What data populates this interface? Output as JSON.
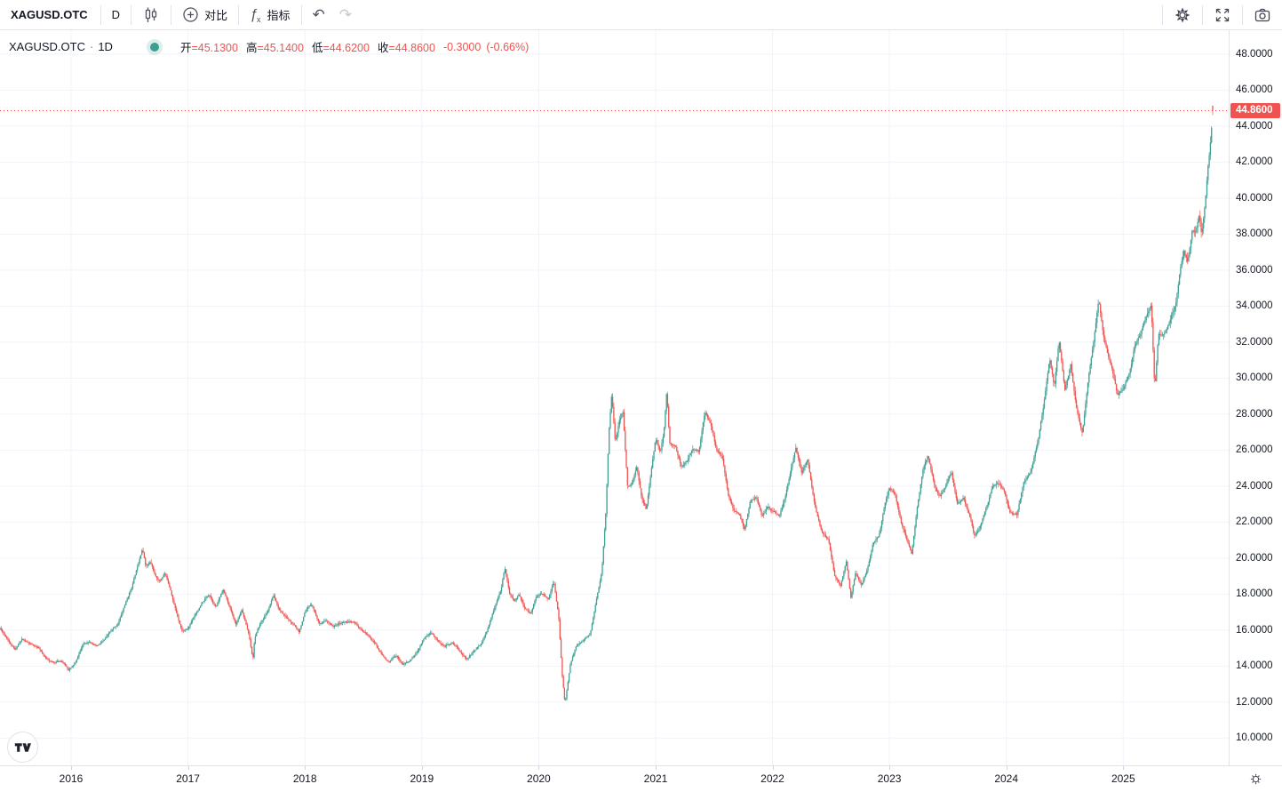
{
  "toolbar": {
    "symbol": "XAGUSD.OTC",
    "interval": "D",
    "compare": "对比",
    "indicators": "指标"
  },
  "icons": {
    "undo": "↶",
    "redo": "↷",
    "fx_f": "ƒ",
    "fx_x": "x"
  },
  "legend": {
    "title": "XAGUSD.OTC",
    "separator": "·",
    "interval": "1D",
    "open_label": "开",
    "open_value": "=45.1300",
    "high_label": "高",
    "high_value": "=45.1400",
    "low_label": "低",
    "low_value": "=44.6200",
    "close_label": "收",
    "close_value": "=44.8600",
    "change": "-0.3000",
    "change_pct": "(-0.66%)"
  },
  "price_axis": {
    "last_price": "44.8600"
  },
  "colors": {
    "up": "#3d9e92",
    "down": "#ef5350",
    "grid": "#f0f3fa",
    "border": "#e0e3eb",
    "text": "#131722",
    "muted": "#787b86",
    "icon": "#50535e",
    "disabled": "#c5c8d1",
    "halo": "rgba(61,158,146,0.18)"
  },
  "chart_data": {
    "type": "candlestick",
    "symbol": "XAGUSD.OTC",
    "timeframe": "1D",
    "last": {
      "open": 45.13,
      "high": 45.14,
      "low": 44.62,
      "close": 44.86,
      "change": -0.3,
      "change_pct": -0.66
    },
    "x_min": 2015.392,
    "x_max": 2025.902,
    "t_end": 2025.765,
    "y_min": 8.49,
    "y_max": 49.33,
    "price_ticks": [
      10,
      12,
      14,
      16,
      18,
      20,
      22,
      24,
      26,
      28,
      30,
      32,
      34,
      36,
      38,
      40,
      42,
      44,
      46,
      48
    ],
    "year_ticks": [
      2016,
      2017,
      2018,
      2019,
      2020,
      2021,
      2022,
      2023,
      2024,
      2025
    ],
    "n_candles": 1060,
    "noise_seed": 11,
    "anchors": [
      [
        2015.392,
        16.1
      ],
      [
        2015.45,
        15.6
      ],
      [
        2015.52,
        14.9
      ],
      [
        2015.58,
        15.5
      ],
      [
        2015.65,
        15.2
      ],
      [
        2015.72,
        15.0
      ],
      [
        2015.78,
        14.4
      ],
      [
        2015.85,
        14.2
      ],
      [
        2015.92,
        14.3
      ],
      [
        2015.98,
        13.8
      ],
      [
        2016.04,
        14.2
      ],
      [
        2016.1,
        15.2
      ],
      [
        2016.16,
        15.4
      ],
      [
        2016.22,
        15.1
      ],
      [
        2016.28,
        15.4
      ],
      [
        2016.34,
        15.9
      ],
      [
        2016.4,
        16.3
      ],
      [
        2016.46,
        17.4
      ],
      [
        2016.52,
        18.4
      ],
      [
        2016.57,
        19.6
      ],
      [
        2016.61,
        20.6
      ],
      [
        2016.64,
        19.6
      ],
      [
        2016.68,
        19.8
      ],
      [
        2016.72,
        19.0
      ],
      [
        2016.76,
        18.7
      ],
      [
        2016.8,
        19.2
      ],
      [
        2016.85,
        18.3
      ],
      [
        2016.9,
        17.0
      ],
      [
        2016.95,
        16.0
      ],
      [
        2017.0,
        16.1
      ],
      [
        2017.06,
        16.9
      ],
      [
        2017.12,
        17.5
      ],
      [
        2017.18,
        18.0
      ],
      [
        2017.24,
        17.3
      ],
      [
        2017.3,
        18.3
      ],
      [
        2017.36,
        17.2
      ],
      [
        2017.41,
        16.3
      ],
      [
        2017.46,
        17.2
      ],
      [
        2017.52,
        15.8
      ],
      [
        2017.555,
        14.4
      ],
      [
        2017.57,
        15.6
      ],
      [
        2017.62,
        16.4
      ],
      [
        2017.68,
        17.0
      ],
      [
        2017.73,
        17.9
      ],
      [
        2017.78,
        17.1
      ],
      [
        2017.84,
        16.7
      ],
      [
        2017.9,
        16.3
      ],
      [
        2017.95,
        15.9
      ],
      [
        2018.0,
        17.0
      ],
      [
        2018.06,
        17.4
      ],
      [
        2018.12,
        16.4
      ],
      [
        2018.18,
        16.5
      ],
      [
        2018.24,
        16.2
      ],
      [
        2018.3,
        16.4
      ],
      [
        2018.36,
        16.5
      ],
      [
        2018.42,
        16.4
      ],
      [
        2018.48,
        16.0
      ],
      [
        2018.54,
        15.7
      ],
      [
        2018.6,
        15.3
      ],
      [
        2018.66,
        14.6
      ],
      [
        2018.72,
        14.2
      ],
      [
        2018.78,
        14.6
      ],
      [
        2018.84,
        14.1
      ],
      [
        2018.9,
        14.3
      ],
      [
        2018.96,
        14.8
      ],
      [
        2019.02,
        15.6
      ],
      [
        2019.08,
        15.9
      ],
      [
        2019.14,
        15.4
      ],
      [
        2019.2,
        15.1
      ],
      [
        2019.26,
        15.3
      ],
      [
        2019.32,
        14.9
      ],
      [
        2019.38,
        14.4
      ],
      [
        2019.44,
        14.8
      ],
      [
        2019.5,
        15.2
      ],
      [
        2019.56,
        16.0
      ],
      [
        2019.62,
        17.2
      ],
      [
        2019.68,
        18.4
      ],
      [
        2019.71,
        19.5
      ],
      [
        2019.75,
        18.1
      ],
      [
        2019.79,
        17.6
      ],
      [
        2019.83,
        18.0
      ],
      [
        2019.88,
        17.2
      ],
      [
        2019.93,
        16.9
      ],
      [
        2019.98,
        17.9
      ],
      [
        2020.03,
        18.0
      ],
      [
        2020.08,
        17.7
      ],
      [
        2020.13,
        18.7
      ],
      [
        2020.17,
        16.8
      ],
      [
        2020.2,
        13.5
      ],
      [
        2020.225,
        11.9
      ],
      [
        2020.27,
        14.1
      ],
      [
        2020.32,
        15.1
      ],
      [
        2020.38,
        15.4
      ],
      [
        2020.44,
        15.7
      ],
      [
        2020.5,
        17.9
      ],
      [
        2020.54,
        19.3
      ],
      [
        2020.575,
        22.6
      ],
      [
        2020.6,
        27.0
      ],
      [
        2020.625,
        29.2
      ],
      [
        2020.655,
        26.3
      ],
      [
        2020.69,
        27.7
      ],
      [
        2020.72,
        28.2
      ],
      [
        2020.76,
        24.0
      ],
      [
        2020.8,
        24.2
      ],
      [
        2020.84,
        25.0
      ],
      [
        2020.88,
        23.3
      ],
      [
        2020.92,
        22.7
      ],
      [
        2020.96,
        24.8
      ],
      [
        2021.0,
        26.6
      ],
      [
        2021.04,
        25.8
      ],
      [
        2021.07,
        26.9
      ],
      [
        2021.095,
        29.2
      ],
      [
        2021.12,
        26.4
      ],
      [
        2021.17,
        26.2
      ],
      [
        2021.22,
        25.1
      ],
      [
        2021.27,
        25.4
      ],
      [
        2021.32,
        26.1
      ],
      [
        2021.37,
        25.9
      ],
      [
        2021.42,
        28.1
      ],
      [
        2021.47,
        27.5
      ],
      [
        2021.52,
        26.0
      ],
      [
        2021.57,
        25.6
      ],
      [
        2021.62,
        23.5
      ],
      [
        2021.67,
        22.6
      ],
      [
        2021.72,
        22.4
      ],
      [
        2021.76,
        21.6
      ],
      [
        2021.81,
        23.2
      ],
      [
        2021.86,
        23.4
      ],
      [
        2021.91,
        22.3
      ],
      [
        2021.96,
        22.9
      ],
      [
        2022.01,
        22.6
      ],
      [
        2022.06,
        22.4
      ],
      [
        2022.11,
        23.5
      ],
      [
        2022.16,
        25.0
      ],
      [
        2022.2,
        26.1
      ],
      [
        2022.25,
        24.7
      ],
      [
        2022.3,
        25.5
      ],
      [
        2022.36,
        23.0
      ],
      [
        2022.42,
        21.5
      ],
      [
        2022.48,
        21.0
      ],
      [
        2022.53,
        19.1
      ],
      [
        2022.58,
        18.4
      ],
      [
        2022.63,
        19.8
      ],
      [
        2022.67,
        17.8
      ],
      [
        2022.71,
        19.2
      ],
      [
        2022.76,
        18.5
      ],
      [
        2022.81,
        19.4
      ],
      [
        2022.86,
        20.9
      ],
      [
        2022.91,
        21.3
      ],
      [
        2022.96,
        23.0
      ],
      [
        2023.0,
        23.9
      ],
      [
        2023.05,
        23.5
      ],
      [
        2023.1,
        21.9
      ],
      [
        2023.15,
        20.9
      ],
      [
        2023.19,
        20.2
      ],
      [
        2023.24,
        23.0
      ],
      [
        2023.29,
        25.0
      ],
      [
        2023.33,
        25.7
      ],
      [
        2023.38,
        24.1
      ],
      [
        2023.43,
        23.4
      ],
      [
        2023.48,
        24.0
      ],
      [
        2023.53,
        24.8
      ],
      [
        2023.58,
        23.0
      ],
      [
        2023.63,
        23.3
      ],
      [
        2023.68,
        22.5
      ],
      [
        2023.73,
        21.2
      ],
      [
        2023.78,
        21.8
      ],
      [
        2023.83,
        22.9
      ],
      [
        2023.88,
        23.9
      ],
      [
        2023.93,
        24.2
      ],
      [
        2023.98,
        23.8
      ],
      [
        2024.03,
        22.6
      ],
      [
        2024.09,
        22.4
      ],
      [
        2024.15,
        24.2
      ],
      [
        2024.21,
        24.9
      ],
      [
        2024.27,
        26.6
      ],
      [
        2024.32,
        28.6
      ],
      [
        2024.37,
        31.2
      ],
      [
        2024.41,
        29.6
      ],
      [
        2024.45,
        32.2
      ],
      [
        2024.5,
        29.4
      ],
      [
        2024.55,
        30.8
      ],
      [
        2024.6,
        28.4
      ],
      [
        2024.65,
        27.0
      ],
      [
        2024.7,
        29.9
      ],
      [
        2024.75,
        32.2
      ],
      [
        2024.79,
        34.5
      ],
      [
        2024.83,
        32.5
      ],
      [
        2024.87,
        31.4
      ],
      [
        2024.91,
        30.4
      ],
      [
        2024.95,
        29.0
      ],
      [
        2025.0,
        29.4
      ],
      [
        2025.05,
        30.4
      ],
      [
        2025.1,
        31.9
      ],
      [
        2025.15,
        32.5
      ],
      [
        2025.2,
        33.5
      ],
      [
        2025.24,
        34.0
      ],
      [
        2025.27,
        29.2
      ],
      [
        2025.3,
        32.4
      ],
      [
        2025.35,
        32.4
      ],
      [
        2025.4,
        33.2
      ],
      [
        2025.45,
        34.1
      ],
      [
        2025.49,
        36.1
      ],
      [
        2025.52,
        36.9
      ],
      [
        2025.55,
        36.4
      ],
      [
        2025.59,
        38.2
      ],
      [
        2025.62,
        38.0
      ],
      [
        2025.65,
        39.2
      ],
      [
        2025.67,
        38.0
      ],
      [
        2025.7,
        39.8
      ],
      [
        2025.72,
        41.4
      ],
      [
        2025.735,
        42.4
      ],
      [
        2025.75,
        43.5
      ],
      [
        2025.76,
        44.4
      ],
      [
        2025.765,
        44.9
      ]
    ]
  }
}
